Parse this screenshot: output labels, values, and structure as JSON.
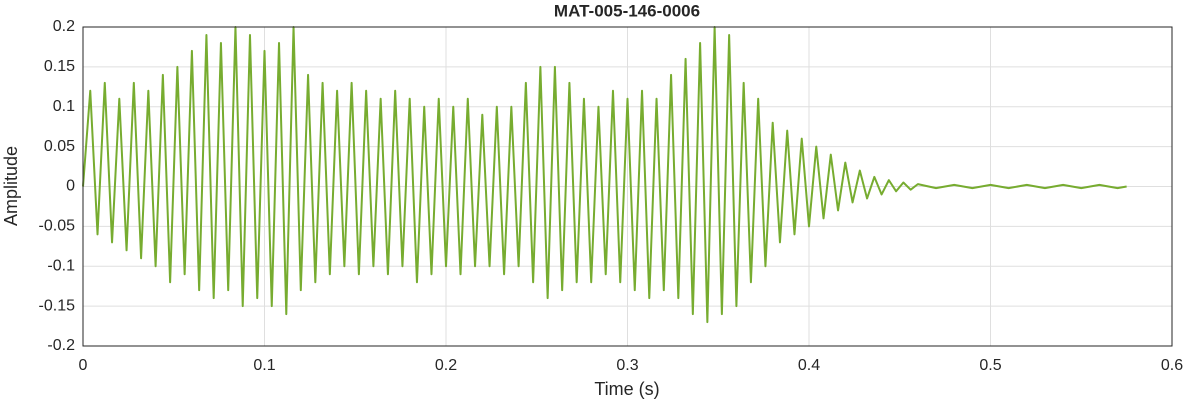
{
  "chart_data": {
    "type": "line",
    "title": "MAT-005-146-0006",
    "x_label": "Time (s)",
    "y_label": "Amplitude",
    "xlim": [
      0,
      0.6
    ],
    "ylim": [
      -0.2,
      0.2
    ],
    "xticks": [
      0,
      0.1,
      0.2,
      0.3,
      0.4,
      0.5,
      0.6
    ],
    "yticks": [
      -0.2,
      -0.15,
      -0.1,
      -0.05,
      0,
      0.05,
      0.1,
      0.15,
      0.2
    ],
    "grid": true,
    "color": "#77ac30",
    "x": [
      0,
      0.004,
      0.008,
      0.012,
      0.016,
      0.02,
      0.024,
      0.028,
      0.032,
      0.036,
      0.04,
      0.044,
      0.048,
      0.052,
      0.056,
      0.06,
      0.064,
      0.068,
      0.072,
      0.076,
      0.08,
      0.084,
      0.088,
      0.092,
      0.096,
      0.1,
      0.104,
      0.108,
      0.112,
      0.116,
      0.12,
      0.124,
      0.128,
      0.132,
      0.136,
      0.14,
      0.144,
      0.148,
      0.152,
      0.156,
      0.16,
      0.164,
      0.168,
      0.172,
      0.176,
      0.18,
      0.184,
      0.188,
      0.192,
      0.196,
      0.2,
      0.204,
      0.208,
      0.212,
      0.216,
      0.22,
      0.224,
      0.228,
      0.232,
      0.236,
      0.24,
      0.244,
      0.248,
      0.252,
      0.256,
      0.26,
      0.264,
      0.268,
      0.272,
      0.276,
      0.28,
      0.284,
      0.288,
      0.292,
      0.296,
      0.3,
      0.304,
      0.308,
      0.312,
      0.316,
      0.32,
      0.324,
      0.328,
      0.332,
      0.336,
      0.34,
      0.344,
      0.348,
      0.352,
      0.356,
      0.36,
      0.364,
      0.368,
      0.372,
      0.376,
      0.38,
      0.384,
      0.388,
      0.392,
      0.396,
      0.4,
      0.404,
      0.408,
      0.412,
      0.416,
      0.42,
      0.424,
      0.428,
      0.432,
      0.436,
      0.44,
      0.444,
      0.448,
      0.452,
      0.456,
      0.46,
      0.47,
      0.48,
      0.49,
      0.5,
      0.51,
      0.52,
      0.53,
      0.54,
      0.55,
      0.56,
      0.57,
      0.575
    ],
    "values": [
      0,
      0.12,
      -0.06,
      0.13,
      -0.07,
      0.11,
      -0.08,
      0.13,
      -0.09,
      0.12,
      -0.1,
      0.14,
      -0.12,
      0.15,
      -0.11,
      0.17,
      -0.13,
      0.19,
      -0.14,
      0.18,
      -0.13,
      0.2,
      -0.15,
      0.19,
      -0.14,
      0.17,
      -0.15,
      0.18,
      -0.16,
      0.2,
      -0.13,
      0.14,
      -0.12,
      0.13,
      -0.11,
      0.12,
      -0.1,
      0.13,
      -0.11,
      0.12,
      -0.1,
      0.11,
      -0.11,
      0.12,
      -0.1,
      0.11,
      -0.12,
      0.1,
      -0.11,
      0.11,
      -0.1,
      0.1,
      -0.11,
      0.11,
      -0.1,
      0.09,
      -0.1,
      0.1,
      -0.11,
      0.1,
      -0.1,
      0.13,
      -0.12,
      0.15,
      -0.14,
      0.15,
      -0.13,
      0.13,
      -0.12,
      0.11,
      -0.12,
      0.1,
      -0.11,
      0.12,
      -0.12,
      0.11,
      -0.13,
      0.12,
      -0.14,
      0.11,
      -0.13,
      0.14,
      -0.14,
      0.16,
      -0.16,
      0.18,
      -0.17,
      0.2,
      -0.16,
      0.19,
      -0.15,
      0.13,
      -0.12,
      0.11,
      -0.1,
      0.08,
      -0.07,
      0.07,
      -0.06,
      0.06,
      -0.05,
      0.05,
      -0.04,
      0.04,
      -0.03,
      0.03,
      -0.02,
      0.02,
      -0.015,
      0.012,
      -0.01,
      0.008,
      -0.006,
      0.005,
      -0.004,
      0.003,
      -0.002,
      0.002,
      -0.002,
      0.002,
      -0.002,
      0.002,
      -0.002,
      0.002,
      -0.002,
      0.002,
      -0.002,
      0
    ]
  }
}
